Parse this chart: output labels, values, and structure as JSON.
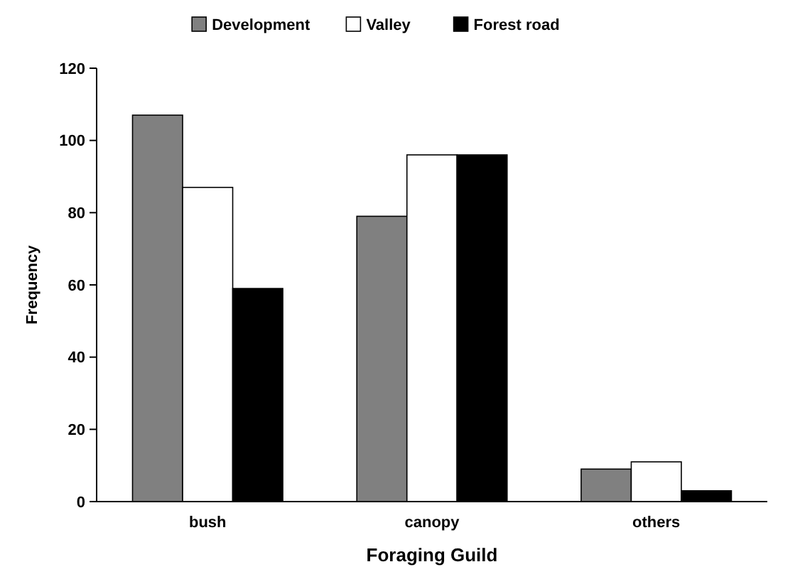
{
  "chart_data": {
    "type": "bar",
    "xlabel": "Foraging Guild",
    "ylabel": "Frequency",
    "categories": [
      "bush",
      "canopy",
      "others"
    ],
    "series": [
      {
        "name": "Development",
        "color": "#808080",
        "values": [
          107,
          79,
          9
        ]
      },
      {
        "name": "Valley",
        "color": "#ffffff",
        "values": [
          87,
          96,
          11
        ]
      },
      {
        "name": "Forest road",
        "color": "#000000",
        "values": [
          59,
          96,
          3
        ]
      }
    ],
    "ylim": [
      0,
      120
    ],
    "yticks": [
      0,
      20,
      40,
      60,
      80,
      100,
      120
    ],
    "grid": false,
    "legend": "top"
  }
}
